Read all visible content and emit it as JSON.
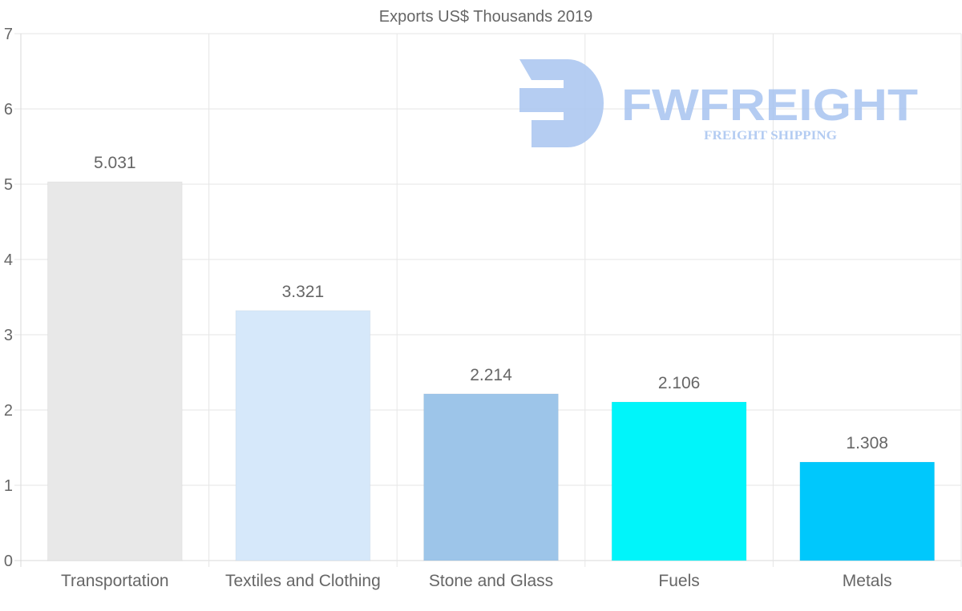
{
  "chart_data": {
    "type": "bar",
    "title": "Exports US$ Thousands 2019",
    "categories": [
      "Transportation",
      "Textiles and Clothing",
      "Stone and Glass",
      "Fuels",
      "Metals"
    ],
    "values": [
      5.031,
      3.321,
      2.214,
      2.106,
      1.308
    ],
    "value_labels": [
      "5.031",
      "3.321",
      "2.214",
      "2.106",
      "1.308"
    ],
    "bar_colors": [
      "#e8e8e8",
      "#d6e8fa",
      "#9dc5e9",
      "#00f5fa",
      "#00c8fc"
    ],
    "xlabel": "",
    "ylabel": "",
    "ylim": [
      0,
      7
    ],
    "yticks": [
      0,
      1,
      2,
      3,
      4,
      5,
      6,
      7
    ],
    "grid": true,
    "legend": "none"
  },
  "watermark": {
    "brand": "FWFREIGHT",
    "tagline": "FREIGHT SHIPPING",
    "color": "#a8c4f0"
  }
}
